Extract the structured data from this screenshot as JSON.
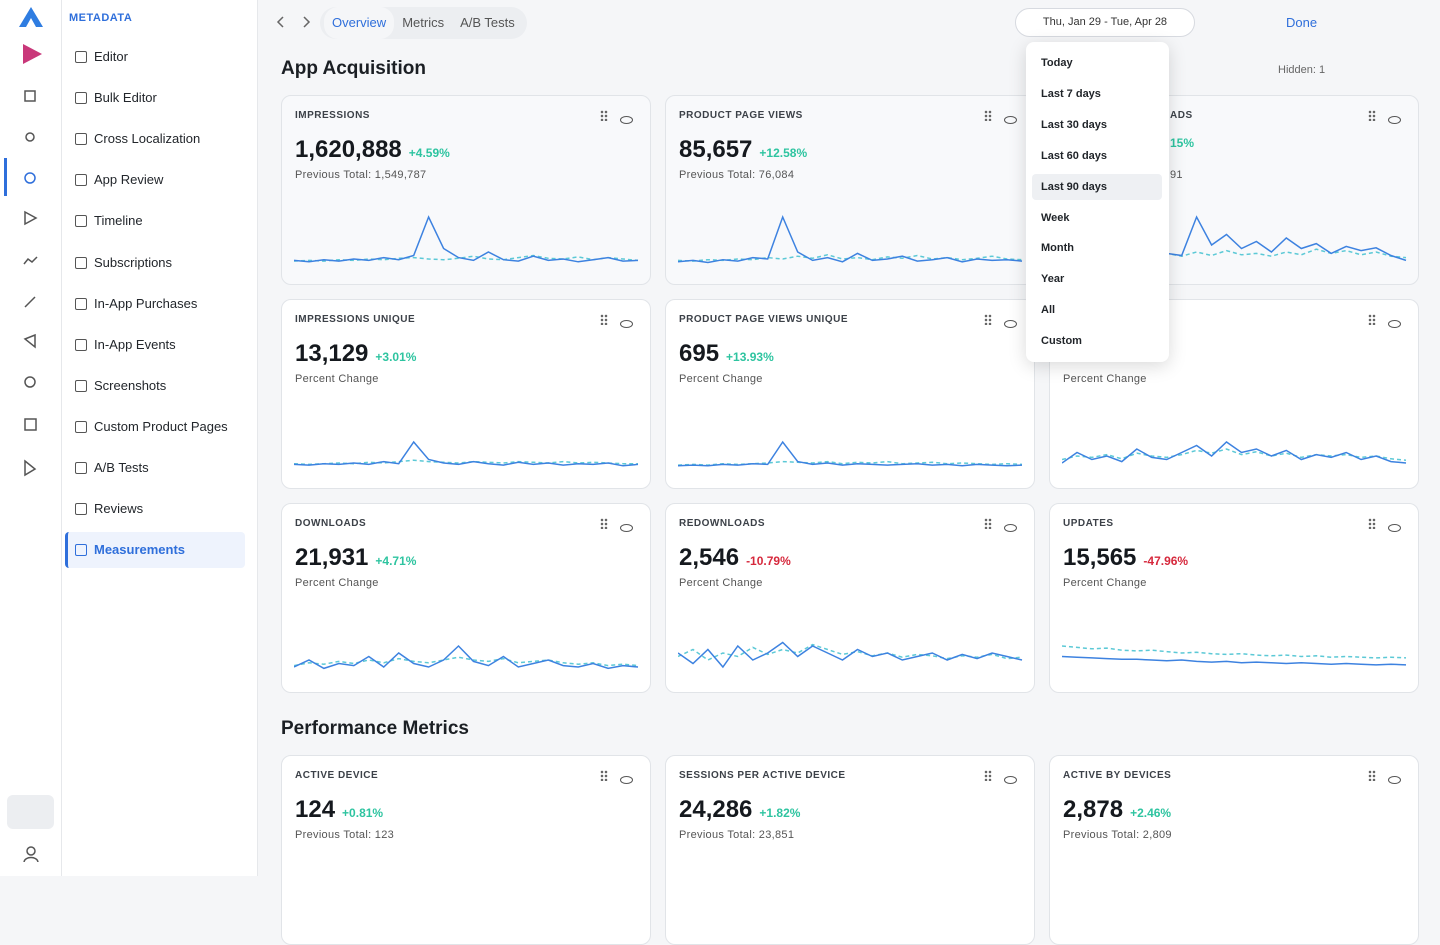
{
  "sidebar": {
    "brand": "METADATA",
    "active_index": 12,
    "nav": [
      "Editor",
      "Bulk Editor",
      "Cross Localization",
      "App Review",
      "Timeline",
      "Subscriptions",
      "In-App Purchases",
      "In-App Events",
      "Screenshots",
      "Custom Product Pages",
      "A/B Tests",
      "Reviews",
      "Measurements"
    ]
  },
  "topbar": {
    "tabs": [
      "Overview",
      "Metrics",
      "A/B Tests"
    ],
    "date_range": "Thu, Jan 29 - Tue, Apr 28",
    "done": "Done"
  },
  "dropdown": {
    "selected_index": 4,
    "options": [
      "Today",
      "Last 7 days",
      "Last 30 days",
      "Last 60 days",
      "Last 90 days",
      "Week",
      "Month",
      "Year",
      "All",
      "Custom"
    ]
  },
  "sections": [
    {
      "title": "App Acquisition",
      "hidden": "Hidden: 1",
      "cards": [
        {
          "title": "IMPRESSIONS",
          "value": "1,620,888",
          "change": "+4.59%",
          "change_color": "#2ec4a0",
          "subtitle": "Previous Total: 1,549,787",
          "spark": [
            8,
            6,
            9,
            7,
            10,
            8,
            12,
            9,
            15,
            70,
            25,
            12,
            8,
            20,
            9,
            7,
            14,
            8,
            10,
            6,
            9,
            12,
            7,
            8
          ],
          "spark_prev": [
            7,
            8,
            7,
            9,
            8,
            10,
            9,
            11,
            12,
            10,
            9,
            11,
            14,
            10,
            9,
            12,
            15,
            11,
            10,
            13,
            9,
            12,
            10,
            8
          ]
        },
        {
          "title": "PRODUCT PAGE VIEWS",
          "value": "85,657",
          "change": "+12.58%",
          "change_color": "#2ec4a0",
          "subtitle": "Previous Total: 76,084",
          "spark": [
            6,
            8,
            5,
            9,
            7,
            12,
            10,
            70,
            20,
            8,
            12,
            6,
            18,
            8,
            10,
            14,
            7,
            9,
            12,
            6,
            10,
            8,
            9,
            7
          ],
          "spark_prev": [
            8,
            7,
            9,
            8,
            10,
            9,
            12,
            10,
            14,
            11,
            16,
            10,
            12,
            9,
            13,
            11,
            15,
            10,
            12,
            9,
            11,
            14,
            10,
            9
          ]
        },
        {
          "title": "ADS",
          "change": "15%",
          "change_color": "#2ec4a0",
          "subtitle": "91",
          "spark": [
            10,
            12,
            8,
            14,
            10,
            16,
            12,
            18,
            15,
            70,
            30,
            45,
            25,
            35,
            20,
            40,
            25,
            32,
            18,
            28,
            22,
            26,
            15,
            8
          ],
          "spark_prev": [
            12,
            14,
            10,
            16,
            12,
            15,
            13,
            18,
            14,
            20,
            15,
            22,
            16,
            18,
            14,
            20,
            16,
            24,
            18,
            22,
            16,
            20,
            14,
            12
          ]
        },
        {
          "title": "IMPRESSIONS UNIQUE",
          "value": "13,129",
          "change": "+3.01%",
          "change_color": "#2ec4a0",
          "subtitle": "Percent Change",
          "spark": [
            8,
            7,
            9,
            8,
            10,
            8,
            12,
            9,
            40,
            15,
            10,
            8,
            12,
            9,
            7,
            11,
            8,
            10,
            7,
            9,
            8,
            10,
            6,
            8
          ],
          "spark_prev": [
            9,
            8,
            9,
            10,
            9,
            11,
            10,
            12,
            14,
            12,
            11,
            10,
            12,
            11,
            10,
            12,
            11,
            10,
            12,
            10,
            11,
            10,
            9,
            9
          ]
        },
        {
          "title": "PRODUCT PAGE VIEWS UNIQUE",
          "value": "695",
          "change": "+13.93%",
          "change_color": "#2ec4a0",
          "subtitle": "Percent Change",
          "spark": [
            6,
            7,
            6,
            8,
            7,
            9,
            8,
            40,
            12,
            8,
            10,
            7,
            9,
            8,
            7,
            8,
            9,
            7,
            8,
            6,
            8,
            7,
            6,
            7
          ],
          "spark_prev": [
            7,
            8,
            7,
            9,
            8,
            9,
            10,
            12,
            11,
            10,
            12,
            9,
            11,
            10,
            12,
            9,
            10,
            11,
            9,
            10,
            9,
            8,
            9,
            8
          ]
        },
        {
          "subtitle": "Percent Change",
          "spark": [
            10,
            25,
            15,
            20,
            12,
            30,
            18,
            15,
            25,
            35,
            20,
            40,
            25,
            30,
            20,
            28,
            15,
            22,
            18,
            25,
            15,
            20,
            12,
            10
          ],
          "spark_prev": [
            15,
            20,
            18,
            22,
            16,
            24,
            20,
            18,
            22,
            28,
            24,
            30,
            22,
            26,
            20,
            24,
            18,
            22,
            20,
            22,
            18,
            20,
            16,
            14
          ]
        },
        {
          "title": "DOWNLOADS",
          "value": "21,931",
          "change": "+4.71%",
          "change_color": "#2ec4a0",
          "subtitle": "Percent Change",
          "spark": [
            10,
            20,
            8,
            15,
            12,
            25,
            10,
            30,
            15,
            10,
            20,
            40,
            18,
            12,
            25,
            10,
            15,
            20,
            12,
            10,
            15,
            8,
            12,
            10
          ],
          "spark_prev": [
            12,
            16,
            14,
            18,
            15,
            20,
            16,
            22,
            18,
            16,
            20,
            24,
            20,
            18,
            22,
            16,
            18,
            20,
            16,
            14,
            16,
            12,
            14,
            12
          ]
        },
        {
          "title": "REDOWNLOADS",
          "value": "2,546",
          "change": "-10.79%",
          "change_color": "#d6283c",
          "subtitle": "Percent Change",
          "spark": [
            30,
            15,
            35,
            10,
            40,
            20,
            30,
            45,
            25,
            40,
            30,
            20,
            35,
            25,
            30,
            20,
            25,
            30,
            20,
            28,
            22,
            30,
            25,
            20
          ],
          "spark_prev": [
            25,
            35,
            20,
            30,
            25,
            38,
            28,
            35,
            30,
            42,
            35,
            28,
            32,
            26,
            30,
            24,
            28,
            26,
            22,
            26,
            24,
            28,
            22,
            24
          ]
        },
        {
          "title": "UPDATES",
          "value": "15,565",
          "change": "-47.96%",
          "change_color": "#d6283c",
          "subtitle": "Percent Change",
          "spark": [
            25,
            24,
            23,
            22,
            21,
            21,
            20,
            19,
            20,
            18,
            17,
            18,
            16,
            17,
            16,
            15,
            16,
            15,
            14,
            15,
            14,
            13,
            14,
            13
          ],
          "spark_prev": [
            40,
            38,
            36,
            37,
            34,
            33,
            34,
            32,
            30,
            31,
            29,
            28,
            29,
            27,
            26,
            27,
            25,
            26,
            24,
            25,
            24,
            23,
            24,
            23
          ]
        }
      ]
    },
    {
      "title": "Performance Metrics",
      "cards": [
        {
          "title": "ACTIVE DEVICE",
          "value": "124",
          "change": "+0.81%",
          "change_color": "#2ec4a0",
          "subtitle": "Previous Total: 123"
        },
        {
          "title": "SESSIONS PER ACTIVE DEVICE",
          "value": "24,286",
          "change": "+1.82%",
          "change_color": "#2ec4a0",
          "subtitle": "Previous Total: 23,851"
        },
        {
          "title": "ACTIVE BY DEVICES",
          "value": "2,878",
          "change": "+2.46%",
          "change_color": "#2ec4a0",
          "subtitle": "Previous Total: 2,809"
        }
      ]
    }
  ]
}
